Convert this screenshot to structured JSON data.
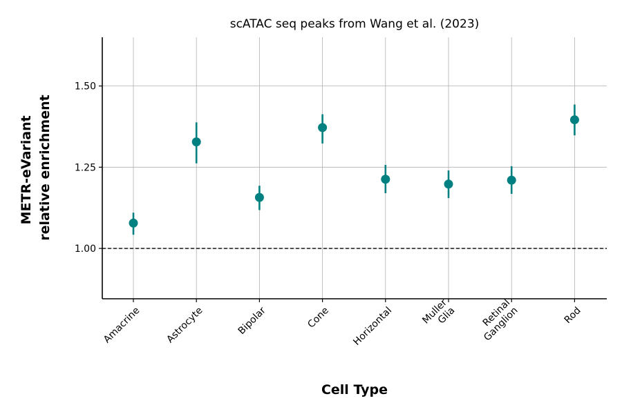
{
  "chart_data": {
    "type": "scatter",
    "title": "scATAC seq peaks from Wang et al. (2023)",
    "xlabel": "Cell Type",
    "ylabel": [
      "METR-eVariant",
      "relative enrichment"
    ],
    "categories": [
      [
        "Amacrine"
      ],
      [
        "Astrocyte"
      ],
      [
        "Bipolar"
      ],
      [
        "Cone"
      ],
      [
        "Horizontal"
      ],
      [
        "Muller",
        "Glia"
      ],
      [
        "Retinal",
        "Ganglion"
      ],
      [
        "Rod"
      ]
    ],
    "values": [
      1.078,
      1.328,
      1.157,
      1.372,
      1.213,
      1.198,
      1.21,
      1.396
    ],
    "error_low": [
      1.042,
      1.262,
      1.118,
      1.323,
      1.17,
      1.155,
      1.168,
      1.348
    ],
    "error_high": [
      1.11,
      1.388,
      1.193,
      1.413,
      1.257,
      1.24,
      1.253,
      1.443
    ],
    "reference_line": 1.0,
    "ylim": [
      0.845,
      1.65
    ],
    "yticks": [
      1.0,
      1.25,
      1.5
    ],
    "ytick_labels": [
      "1.00",
      "1.25",
      "1.50"
    ],
    "grid": true,
    "marker_color": "#008080",
    "reference_color": "#000000"
  }
}
